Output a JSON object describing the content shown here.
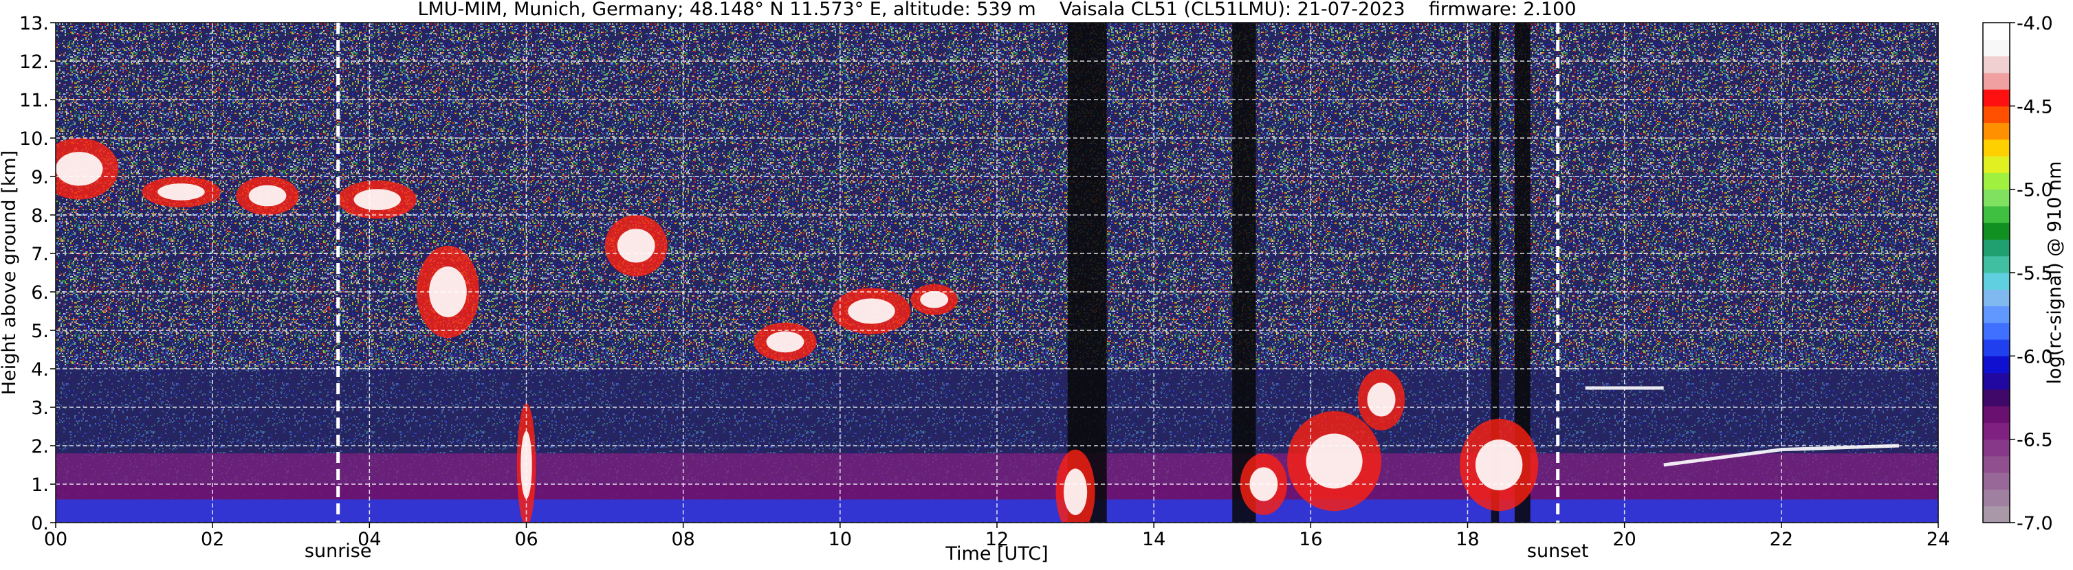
{
  "chart_data": {
    "type": "heatmap",
    "title": "LMU-MIM, Munich, Germany; 48.148° N 11.573° E, altitude: 539 m    Vaisala CL51 (CL51LMU): 21-07-2023    firmware: 2.100",
    "x_label": "Time [UTC]",
    "y_label": "Height above ground [km]",
    "xlim": [
      0,
      24
    ],
    "xticks": [
      {
        "value": 0,
        "label": "00"
      },
      {
        "value": 2,
        "label": "02"
      },
      {
        "value": 4,
        "label": "04"
      },
      {
        "value": 6,
        "label": "06"
      },
      {
        "value": 8,
        "label": "08"
      },
      10,
      12,
      14,
      16,
      18,
      20,
      22,
      24
    ],
    "ylim": [
      0,
      13
    ],
    "yticks": [
      {
        "value": 0,
        "label": "0."
      },
      {
        "value": 1,
        "label": "1."
      },
      {
        "value": 2,
        "label": "2."
      },
      {
        "value": 3,
        "label": "3."
      },
      {
        "value": 4,
        "label": "4."
      },
      {
        "value": 5,
        "label": "5."
      },
      {
        "value": 6,
        "label": "6."
      },
      {
        "value": 7,
        "label": "7."
      },
      {
        "value": 8,
        "label": "8."
      },
      {
        "value": 9,
        "label": "9."
      },
      {
        "value": 10,
        "label": "10."
      },
      {
        "value": 11,
        "label": "11."
      },
      {
        "value": 12,
        "label": "12."
      },
      {
        "value": 13,
        "label": "13."
      }
    ],
    "grid": true,
    "annotations": [
      {
        "label": "sunrise",
        "x": 3.6
      },
      {
        "label": "sunset",
        "x": 19.15
      }
    ],
    "colorbar": {
      "label": "log(rc-signal) @ 910 nm",
      "clim": [
        -7,
        -4
      ],
      "ticks": [
        {
          "value": -7,
          "label": "-7.0"
        },
        {
          "value": -6.5,
          "label": "-6.5"
        },
        {
          "value": -6,
          "label": "-6.0"
        },
        {
          "value": -5.5,
          "label": "-5.5"
        },
        {
          "value": -5,
          "label": "-5.0"
        },
        {
          "value": -4.5,
          "label": "-4.5"
        },
        {
          "value": -4,
          "label": "-4.0"
        }
      ],
      "colormap": [
        "#a898a8",
        "#a080a0",
        "#986898",
        "#905090",
        "#883888",
        "#802080",
        "#6a1070",
        "#400868",
        "#2008a0",
        "#1010d0",
        "#2040f0",
        "#4070ff",
        "#6098ff",
        "#80b8f0",
        "#60d0e0",
        "#40c0a0",
        "#20a070",
        "#109020",
        "#40c040",
        "#80e060",
        "#a0f040",
        "#e0f020",
        "#ffd000",
        "#ff9000",
        "#ff5000",
        "#ff1010",
        "#f0a0a0",
        "#f0d0d0",
        "#f8f8f8",
        "#ffffff"
      ]
    }
  }
}
